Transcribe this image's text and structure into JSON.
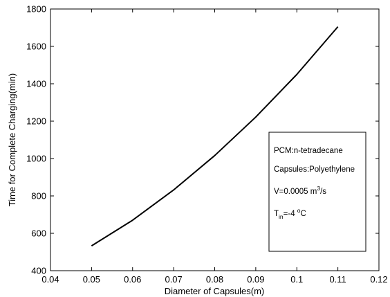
{
  "chart_data": {
    "type": "line",
    "title": "",
    "xlabel": "Diameter of Capsules(m)",
    "ylabel": "Time for Complete Charging(min)",
    "xlim": [
      0.04,
      0.12
    ],
    "ylim": [
      400,
      1800
    ],
    "xticks": [
      0.04,
      0.05,
      0.06,
      0.07,
      0.08,
      0.09,
      0.1,
      0.11,
      0.12
    ],
    "xtick_labels": [
      "0.04",
      "0.05",
      "0.06",
      "0.07",
      "0.08",
      "0.09",
      "0.1",
      "0.11",
      "0.12"
    ],
    "yticks": [
      400,
      600,
      800,
      1000,
      1200,
      1400,
      1600,
      1800
    ],
    "ytick_labels": [
      "400",
      "600",
      "800",
      "1000",
      "1200",
      "1400",
      "1600",
      "1800"
    ],
    "grid": false,
    "series": [
      {
        "x": [
          0.05,
          0.06,
          0.07,
          0.08,
          0.09,
          0.1,
          0.11
        ],
        "y": [
          533,
          670,
          832,
          1016,
          1222,
          1450,
          1705
        ]
      }
    ],
    "annotation_box": {
      "placement": "right-middle",
      "line1": "PCM:n-tetradecane",
      "line2": "Capsules:Polyethylene",
      "line3_main": "V=0.0005 m",
      "line3_sup": "3",
      "line3_tail": "/s",
      "line4_main": "T",
      "line4_sub": "in",
      "line4_mid": "=-4 ",
      "line4_sup": "o",
      "line4_tail": "C"
    },
    "colors": {
      "line": "#000000",
      "axes": "#000000",
      "background": "#ffffff"
    }
  }
}
